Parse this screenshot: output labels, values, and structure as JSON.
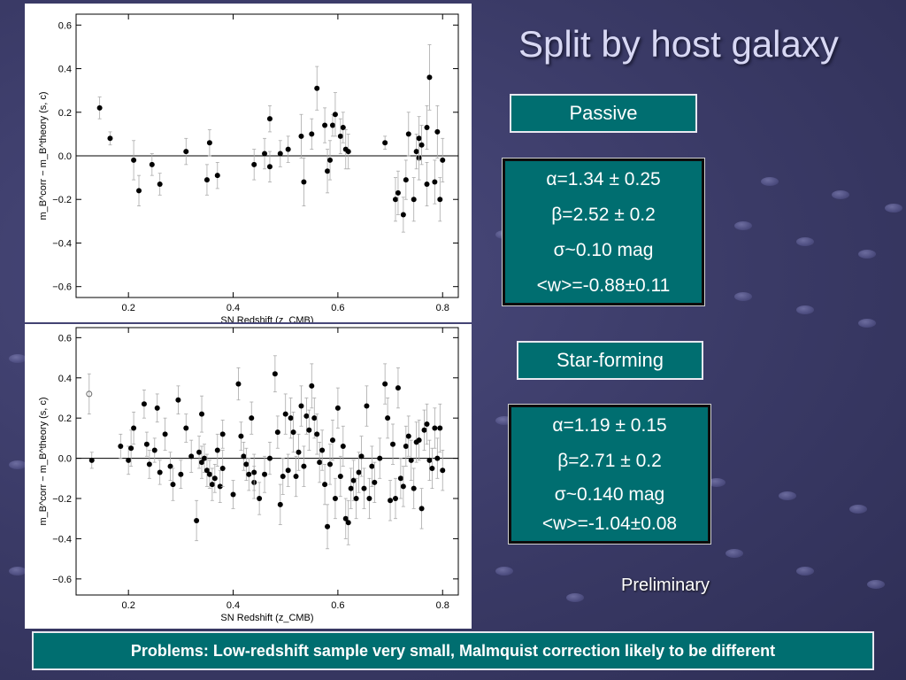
{
  "title": "Split by host galaxy",
  "passive": {
    "label": "Passive",
    "alpha": "α=1.34 ± 0.25",
    "beta": "β=2.52 ± 0.2",
    "sigma": "σ~0.10 mag",
    "w": "<w>=-0.88±0.11"
  },
  "starforming": {
    "label": "Star-forming",
    "alpha": "α=1.19 ± 0.15",
    "beta": "β=2.71 ± 0.2",
    "sigma": "σ~0.140 mag",
    "w": "<w>=-1.04±0.08"
  },
  "preliminary": "Preliminary",
  "footer": "Problems: Low-redshift sample very small, Malmquist correction likely to be different",
  "colors": {
    "panel": "#006e70",
    "background": "#3e3e6c",
    "title": "#d8d8f4",
    "points": "#000000",
    "errorbars": "#aaaaaa"
  },
  "chart_data": [
    {
      "type": "scatter",
      "name": "Passive hosts",
      "xlabel": "SN Redshift (z_CMB)",
      "ylabel": "m_B^corr − m_B^theory (s, c)",
      "xlim": [
        0.1,
        0.83
      ],
      "ylim": [
        -0.65,
        0.65
      ],
      "xticks": [
        0.2,
        0.4,
        0.6,
        0.8
      ],
      "yticks": [
        -0.6,
        -0.4,
        -0.2,
        0.0,
        0.2,
        0.4,
        0.6
      ],
      "grid": false,
      "points": [
        {
          "x": 0.145,
          "y": 0.22,
          "e": 0.05
        },
        {
          "x": 0.165,
          "y": 0.08,
          "e": 0.03
        },
        {
          "x": 0.21,
          "y": -0.02,
          "e": 0.09
        },
        {
          "x": 0.22,
          "y": -0.16,
          "e": 0.07
        },
        {
          "x": 0.245,
          "y": -0.04,
          "e": 0.05
        },
        {
          "x": 0.26,
          "y": -0.13,
          "e": 0.05
        },
        {
          "x": 0.31,
          "y": 0.02,
          "e": 0.06
        },
        {
          "x": 0.35,
          "y": -0.11,
          "e": 0.07
        },
        {
          "x": 0.355,
          "y": 0.06,
          "e": 0.06
        },
        {
          "x": 0.37,
          "y": -0.09,
          "e": 0.06
        },
        {
          "x": 0.44,
          "y": -0.04,
          "e": 0.07
        },
        {
          "x": 0.46,
          "y": 0.01,
          "e": 0.07
        },
        {
          "x": 0.47,
          "y": 0.17,
          "e": 0.06
        },
        {
          "x": 0.47,
          "y": -0.05,
          "e": 0.07
        },
        {
          "x": 0.49,
          "y": 0.01,
          "e": 0.06
        },
        {
          "x": 0.505,
          "y": 0.03,
          "e": 0.06
        },
        {
          "x": 0.53,
          "y": 0.09,
          "e": 0.1
        },
        {
          "x": 0.535,
          "y": -0.12,
          "e": 0.11
        },
        {
          "x": 0.55,
          "y": 0.1,
          "e": 0.07
        },
        {
          "x": 0.56,
          "y": 0.31,
          "e": 0.1
        },
        {
          "x": 0.575,
          "y": 0.14,
          "e": 0.08
        },
        {
          "x": 0.58,
          "y": -0.07,
          "e": 0.1
        },
        {
          "x": 0.585,
          "y": -0.02,
          "e": 0.09
        },
        {
          "x": 0.59,
          "y": 0.14,
          "e": 0.05
        },
        {
          "x": 0.595,
          "y": 0.19,
          "e": 0.1
        },
        {
          "x": 0.605,
          "y": 0.09,
          "e": 0.08
        },
        {
          "x": 0.61,
          "y": 0.13,
          "e": 0.07
        },
        {
          "x": 0.615,
          "y": 0.03,
          "e": 0.09
        },
        {
          "x": 0.62,
          "y": 0.02,
          "e": 0.08
        },
        {
          "x": 0.69,
          "y": 0.06,
          "e": 0.03
        },
        {
          "x": 0.71,
          "y": -0.2,
          "e": 0.1
        },
        {
          "x": 0.715,
          "y": -0.17,
          "e": 0.1
        },
        {
          "x": 0.725,
          "y": -0.27,
          "e": 0.08
        },
        {
          "x": 0.73,
          "y": -0.11,
          "e": 0.09
        },
        {
          "x": 0.735,
          "y": 0.1,
          "e": 0.1
        },
        {
          "x": 0.745,
          "y": -0.2,
          "e": 0.1
        },
        {
          "x": 0.75,
          "y": 0.02,
          "e": 0.08
        },
        {
          "x": 0.755,
          "y": -0.01,
          "e": 0.1
        },
        {
          "x": 0.755,
          "y": 0.08,
          "e": 0.1
        },
        {
          "x": 0.76,
          "y": 0.05,
          "e": 0.09
        },
        {
          "x": 0.77,
          "y": -0.13,
          "e": 0.1
        },
        {
          "x": 0.77,
          "y": 0.13,
          "e": 0.1
        },
        {
          "x": 0.775,
          "y": 0.36,
          "e": 0.15
        },
        {
          "x": 0.785,
          "y": -0.12,
          "e": 0.1
        },
        {
          "x": 0.79,
          "y": 0.11,
          "e": 0.12
        },
        {
          "x": 0.795,
          "y": -0.2,
          "e": 0.1
        },
        {
          "x": 0.8,
          "y": -0.02,
          "e": 0.1
        }
      ]
    },
    {
      "type": "scatter",
      "name": "Star-forming hosts",
      "xlabel": "SN Redshift (z_CMB)",
      "ylabel": "m_B^corr − m_B^theory (s, c)",
      "xlim": [
        0.1,
        0.83
      ],
      "ylim": [
        -0.68,
        0.65
      ],
      "xticks": [
        0.2,
        0.4,
        0.6,
        0.8
      ],
      "yticks": [
        -0.6,
        -0.4,
        -0.2,
        0.0,
        0.2,
        0.4,
        0.6
      ],
      "grid": false,
      "points": [
        {
          "x": 0.125,
          "y": 0.32,
          "e": 0.1,
          "open": true
        },
        {
          "x": 0.13,
          "y": -0.01,
          "e": 0.04
        },
        {
          "x": 0.185,
          "y": 0.06,
          "e": 0.06
        },
        {
          "x": 0.2,
          "y": -0.01,
          "e": 0.07
        },
        {
          "x": 0.205,
          "y": 0.05,
          "e": 0.09
        },
        {
          "x": 0.21,
          "y": 0.15,
          "e": 0.08
        },
        {
          "x": 0.23,
          "y": 0.27,
          "e": 0.07
        },
        {
          "x": 0.235,
          "y": 0.07,
          "e": 0.06
        },
        {
          "x": 0.24,
          "y": -0.03,
          "e": 0.07
        },
        {
          "x": 0.25,
          "y": 0.04,
          "e": 0.06
        },
        {
          "x": 0.255,
          "y": 0.25,
          "e": 0.07
        },
        {
          "x": 0.26,
          "y": -0.07,
          "e": 0.06
        },
        {
          "x": 0.27,
          "y": 0.12,
          "e": 0.08
        },
        {
          "x": 0.28,
          "y": -0.04,
          "e": 0.07
        },
        {
          "x": 0.285,
          "y": -0.13,
          "e": 0.08
        },
        {
          "x": 0.295,
          "y": 0.29,
          "e": 0.07
        },
        {
          "x": 0.3,
          "y": -0.08,
          "e": 0.07
        },
        {
          "x": 0.31,
          "y": 0.15,
          "e": 0.07
        },
        {
          "x": 0.32,
          "y": 0.01,
          "e": 0.08
        },
        {
          "x": 0.33,
          "y": -0.31,
          "e": 0.1
        },
        {
          "x": 0.335,
          "y": 0.03,
          "e": 0.08
        },
        {
          "x": 0.34,
          "y": -0.02,
          "e": 0.08
        },
        {
          "x": 0.34,
          "y": 0.22,
          "e": 0.09
        },
        {
          "x": 0.345,
          "y": 0.0,
          "e": 0.07
        },
        {
          "x": 0.35,
          "y": -0.06,
          "e": 0.08
        },
        {
          "x": 0.355,
          "y": -0.08,
          "e": 0.07
        },
        {
          "x": 0.36,
          "y": -0.13,
          "e": 0.08
        },
        {
          "x": 0.365,
          "y": -0.1,
          "e": 0.07
        },
        {
          "x": 0.37,
          "y": 0.04,
          "e": 0.08
        },
        {
          "x": 0.375,
          "y": -0.14,
          "e": 0.08
        },
        {
          "x": 0.38,
          "y": 0.12,
          "e": 0.07
        },
        {
          "x": 0.38,
          "y": -0.05,
          "e": 0.09
        },
        {
          "x": 0.4,
          "y": -0.18,
          "e": 0.07
        },
        {
          "x": 0.41,
          "y": 0.37,
          "e": 0.08
        },
        {
          "x": 0.415,
          "y": 0.11,
          "e": 0.07
        },
        {
          "x": 0.42,
          "y": 0.01,
          "e": 0.07
        },
        {
          "x": 0.425,
          "y": -0.03,
          "e": 0.08
        },
        {
          "x": 0.43,
          "y": -0.08,
          "e": 0.08
        },
        {
          "x": 0.435,
          "y": 0.2,
          "e": 0.08
        },
        {
          "x": 0.44,
          "y": -0.12,
          "e": 0.08
        },
        {
          "x": 0.44,
          "y": -0.07,
          "e": 0.09
        },
        {
          "x": 0.45,
          "y": -0.2,
          "e": 0.08
        },
        {
          "x": 0.46,
          "y": -0.08,
          "e": 0.09
        },
        {
          "x": 0.47,
          "y": 0.0,
          "e": 0.08
        },
        {
          "x": 0.48,
          "y": 0.42,
          "e": 0.09
        },
        {
          "x": 0.485,
          "y": 0.13,
          "e": 0.08
        },
        {
          "x": 0.49,
          "y": -0.23,
          "e": 0.1
        },
        {
          "x": 0.495,
          "y": -0.09,
          "e": 0.09
        },
        {
          "x": 0.5,
          "y": 0.22,
          "e": 0.1
        },
        {
          "x": 0.505,
          "y": -0.06,
          "e": 0.08
        },
        {
          "x": 0.51,
          "y": 0.2,
          "e": 0.1
        },
        {
          "x": 0.515,
          "y": 0.13,
          "e": 0.1
        },
        {
          "x": 0.52,
          "y": -0.09,
          "e": 0.1
        },
        {
          "x": 0.525,
          "y": 0.03,
          "e": 0.09
        },
        {
          "x": 0.53,
          "y": 0.26,
          "e": 0.1
        },
        {
          "x": 0.535,
          "y": -0.04,
          "e": 0.1
        },
        {
          "x": 0.54,
          "y": 0.21,
          "e": 0.09
        },
        {
          "x": 0.545,
          "y": 0.14,
          "e": 0.1
        },
        {
          "x": 0.55,
          "y": 0.36,
          "e": 0.11
        },
        {
          "x": 0.555,
          "y": 0.2,
          "e": 0.1
        },
        {
          "x": 0.56,
          "y": 0.12,
          "e": 0.1
        },
        {
          "x": 0.565,
          "y": -0.02,
          "e": 0.1
        },
        {
          "x": 0.57,
          "y": 0.04,
          "e": 0.1
        },
        {
          "x": 0.575,
          "y": -0.13,
          "e": 0.1
        },
        {
          "x": 0.58,
          "y": -0.34,
          "e": 0.11
        },
        {
          "x": 0.585,
          "y": -0.03,
          "e": 0.1
        },
        {
          "x": 0.59,
          "y": 0.09,
          "e": 0.1
        },
        {
          "x": 0.595,
          "y": -0.2,
          "e": 0.1
        },
        {
          "x": 0.6,
          "y": 0.25,
          "e": 0.1
        },
        {
          "x": 0.605,
          "y": -0.09,
          "e": 0.1
        },
        {
          "x": 0.61,
          "y": 0.06,
          "e": 0.1
        },
        {
          "x": 0.615,
          "y": -0.3,
          "e": 0.1
        },
        {
          "x": 0.62,
          "y": -0.32,
          "e": 0.11
        },
        {
          "x": 0.625,
          "y": -0.15,
          "e": 0.1
        },
        {
          "x": 0.63,
          "y": -0.11,
          "e": 0.1
        },
        {
          "x": 0.635,
          "y": -0.2,
          "e": 0.1
        },
        {
          "x": 0.64,
          "y": -0.07,
          "e": 0.1
        },
        {
          "x": 0.645,
          "y": 0.01,
          "e": 0.1
        },
        {
          "x": 0.65,
          "y": -0.15,
          "e": 0.1
        },
        {
          "x": 0.655,
          "y": 0.26,
          "e": 0.1
        },
        {
          "x": 0.66,
          "y": -0.2,
          "e": 0.1
        },
        {
          "x": 0.665,
          "y": -0.04,
          "e": 0.1
        },
        {
          "x": 0.67,
          "y": -0.12,
          "e": 0.1
        },
        {
          "x": 0.68,
          "y": 0.0,
          "e": 0.1
        },
        {
          "x": 0.69,
          "y": 0.37,
          "e": 0.1
        },
        {
          "x": 0.695,
          "y": 0.2,
          "e": 0.1
        },
        {
          "x": 0.7,
          "y": -0.21,
          "e": 0.1
        },
        {
          "x": 0.705,
          "y": 0.07,
          "e": 0.1
        },
        {
          "x": 0.71,
          "y": -0.2,
          "e": 0.1
        },
        {
          "x": 0.715,
          "y": 0.35,
          "e": 0.1
        },
        {
          "x": 0.72,
          "y": -0.1,
          "e": 0.1
        },
        {
          "x": 0.725,
          "y": -0.14,
          "e": 0.1
        },
        {
          "x": 0.73,
          "y": 0.06,
          "e": 0.1
        },
        {
          "x": 0.735,
          "y": 0.11,
          "e": 0.1
        },
        {
          "x": 0.74,
          "y": -0.01,
          "e": 0.1
        },
        {
          "x": 0.745,
          "y": -0.15,
          "e": 0.1
        },
        {
          "x": 0.75,
          "y": 0.08,
          "e": 0.1
        },
        {
          "x": 0.755,
          "y": 0.09,
          "e": 0.1
        },
        {
          "x": 0.76,
          "y": -0.25,
          "e": 0.1
        },
        {
          "x": 0.765,
          "y": 0.14,
          "e": 0.1
        },
        {
          "x": 0.77,
          "y": 0.17,
          "e": 0.1
        },
        {
          "x": 0.775,
          "y": -0.01,
          "e": 0.1
        },
        {
          "x": 0.78,
          "y": -0.05,
          "e": 0.1
        },
        {
          "x": 0.785,
          "y": 0.15,
          "e": 0.1
        },
        {
          "x": 0.79,
          "y": 0.0,
          "e": 0.1
        },
        {
          "x": 0.795,
          "y": 0.15,
          "e": 0.12
        },
        {
          "x": 0.8,
          "y": -0.06,
          "e": 0.1
        }
      ]
    }
  ]
}
